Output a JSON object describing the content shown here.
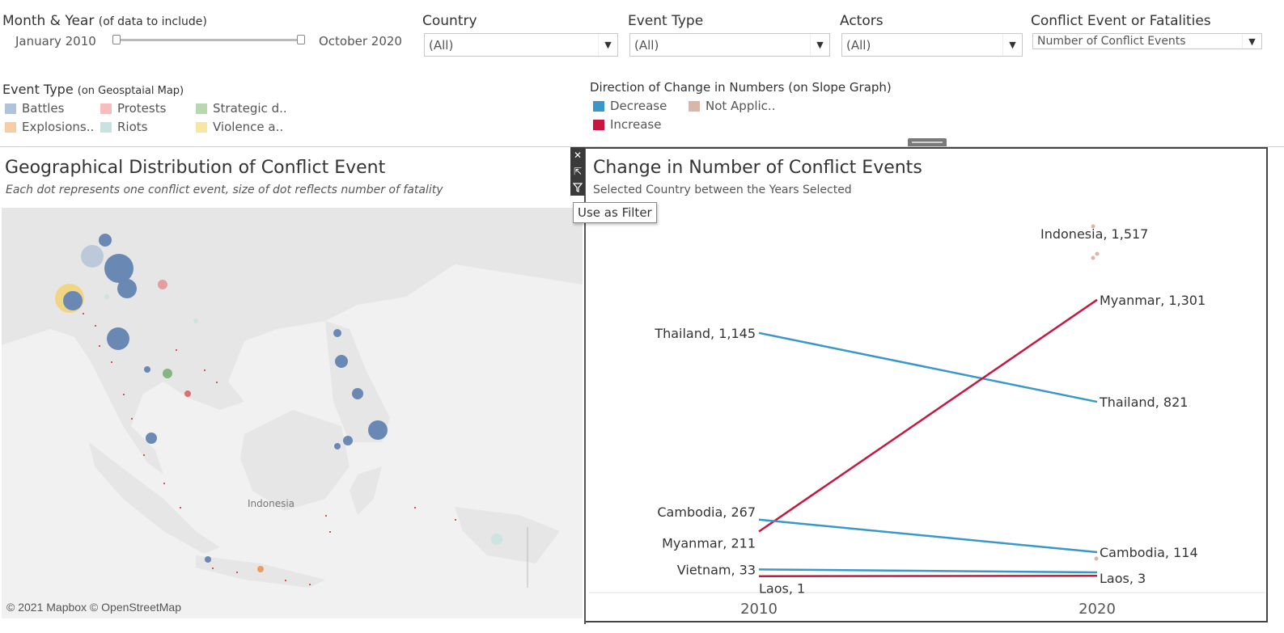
{
  "filters": {
    "date": {
      "label": "Month & Year",
      "sub": "(of data to include)",
      "start": "January 2010",
      "end": "October 2020"
    },
    "country": {
      "label": "Country",
      "value": "(All)"
    },
    "event_type": {
      "label": "Event Type",
      "value": "(All)"
    },
    "actors": {
      "label": "Actors",
      "value": "(All)"
    },
    "measure": {
      "label": "Conflict Event or Fatalities",
      "value": "Number of Conflict Events"
    }
  },
  "legend_event": {
    "title": "Event Type",
    "sub": "(on Geosptaial Map)",
    "items": [
      {
        "label": "Battles",
        "color": "#b1c3d8"
      },
      {
        "label": "Protests",
        "color": "#f7bcbc"
      },
      {
        "label": "Strategic d..",
        "color": "#b8d9b0"
      },
      {
        "label": "Explosions..",
        "color": "#f9cda4"
      },
      {
        "label": "Riots",
        "color": "#c8e3df"
      },
      {
        "label": "Violence a..",
        "color": "#f8e6a3"
      }
    ]
  },
  "legend_direction": {
    "title": "Direction of Change in Numbers (on Slope Graph)",
    "items": [
      {
        "label": "Decrease",
        "color": "#3a97c9"
      },
      {
        "label": "Not Applic..",
        "color": "#dbb6a8"
      },
      {
        "label": "Increase",
        "color": "#c7173f"
      }
    ]
  },
  "map_panel": {
    "title": "Geographical Distribution of Conflict Event",
    "subtitle": "Each dot represents one conflict event, size of dot reflects number of fatality",
    "region_label": "Indonesia",
    "credit": "© 2021 Mapbox © OpenStreetMap"
  },
  "toolbar": {
    "tooltip": "Use as Filter"
  },
  "slope_panel": {
    "title": "Change in Number of Conflict Events",
    "subtitle": "Selected Country between the Years Selected"
  },
  "chart_data": {
    "type": "line",
    "title": "Change in Number of Conflict Events",
    "subtitle": "Selected Country between the Years Selected",
    "x": [
      "2010",
      "2020"
    ],
    "ylim": [
      0,
      1650
    ],
    "series": [
      {
        "name": "Thailand",
        "values": [
          1145,
          821
        ],
        "direction": "Decrease",
        "color": "#3a97c9",
        "labels": [
          "Thailand, 1,145",
          "Thailand, 821"
        ]
      },
      {
        "name": "Myanmar",
        "values": [
          211,
          1301
        ],
        "direction": "Increase",
        "color": "#c7173f",
        "labels": [
          "Myanmar, 211",
          "Myanmar, 1,301"
        ]
      },
      {
        "name": "Cambodia",
        "values": [
          267,
          114
        ],
        "direction": "Decrease",
        "color": "#3a97c9",
        "labels": [
          "Cambodia, 267",
          "Cambodia, 114"
        ]
      },
      {
        "name": "Vietnam",
        "values": [
          33,
          19
        ],
        "direction": "Decrease",
        "color": "#3a97c9",
        "labels": [
          "Vietnam, 33",
          ""
        ]
      },
      {
        "name": "Laos",
        "values": [
          1,
          3
        ],
        "direction": "Increase",
        "color": "#c7173f",
        "labels": [
          "Laos, 1",
          "Laos, 3"
        ]
      },
      {
        "name": "Indonesia",
        "values": [
          null,
          1517
        ],
        "direction": "Not Applicable",
        "color": "#dbb6a8",
        "labels": [
          "",
          "Indonesia, 1,517"
        ]
      }
    ]
  }
}
